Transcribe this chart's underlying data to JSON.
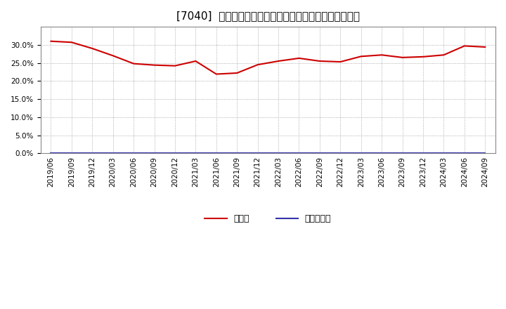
{
  "title": "[7040]  現預金、有利子負債の総資産に対する比率の推移",
  "x_labels": [
    "2019/06",
    "2019/09",
    "2019/12",
    "2020/03",
    "2020/06",
    "2020/09",
    "2020/12",
    "2021/03",
    "2021/06",
    "2021/09",
    "2021/12",
    "2022/03",
    "2022/06",
    "2022/09",
    "2022/12",
    "2023/03",
    "2023/06",
    "2023/09",
    "2023/12",
    "2024/03",
    "2024/06",
    "2024/09"
  ],
  "cash_values": [
    0.31,
    0.307,
    0.29,
    0.27,
    0.248,
    0.244,
    0.242,
    0.255,
    0.219,
    0.222,
    0.245,
    0.255,
    0.263,
    0.255,
    0.253,
    0.268,
    0.272,
    0.265,
    0.267,
    0.272,
    0.297,
    0.294
  ],
  "debt_values": [
    0.0,
    0.0,
    0.0,
    0.0,
    0.0,
    0.0,
    0.0,
    0.0,
    0.0,
    0.0,
    0.0,
    0.0,
    0.0,
    0.0,
    0.0,
    0.0,
    0.0,
    0.0,
    0.0,
    0.0,
    0.0,
    0.0
  ],
  "cash_color": "#cc0000",
  "debt_color": "#3333aa",
  "background_color": "#ffffff",
  "plot_bg_color": "#ffffff",
  "grid_color": "#999999",
  "ylim": [
    0.0,
    0.35
  ],
  "yticks": [
    0.0,
    0.05,
    0.1,
    0.15,
    0.2,
    0.25,
    0.3
  ],
  "legend_cash": "現預金",
  "legend_debt": "有利子負債",
  "title_fontsize": 11,
  "tick_fontsize": 7.5,
  "legend_fontsize": 9
}
